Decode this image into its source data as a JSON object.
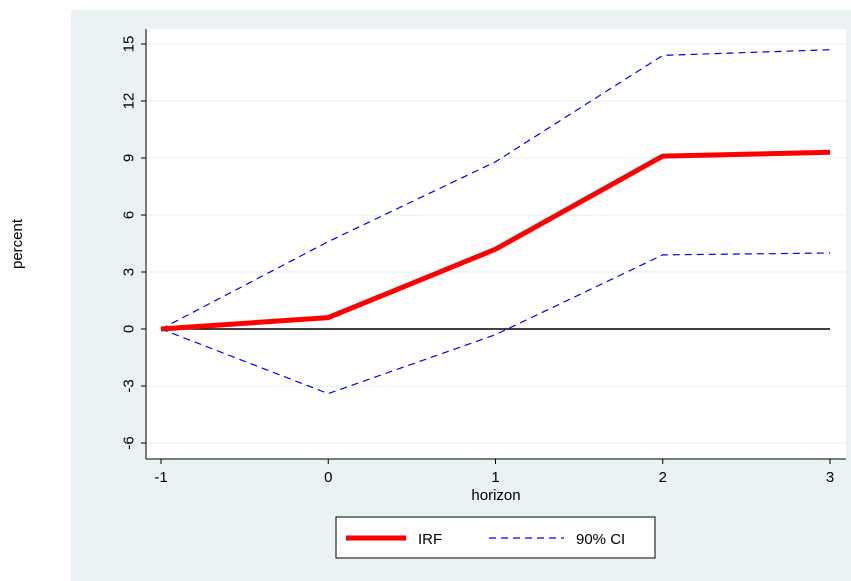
{
  "chart_data": {
    "type": "line",
    "title": "",
    "xlabel": "horizon",
    "ylabel": "percent",
    "xlim": [
      -1,
      3
    ],
    "ylim": [
      -6,
      15
    ],
    "x_ticks": [
      -1,
      0,
      1,
      2,
      3
    ],
    "y_ticks": [
      -6,
      -3,
      0,
      3,
      6,
      9,
      12,
      15
    ],
    "x": [
      -1,
      0,
      1,
      2,
      3
    ],
    "series": [
      {
        "name": "IRF",
        "style": "solid-thick",
        "color": "#ff0000",
        "values": [
          0,
          0.6,
          4.2,
          9.1,
          9.3
        ]
      },
      {
        "name": "90% CI",
        "style": "dashed",
        "color": "#0000ff",
        "values": [
          0,
          4.6,
          8.8,
          14.4,
          14.7
        ]
      },
      {
        "name": "",
        "style": "dashed",
        "color": "#0000ff",
        "values": [
          0,
          -3.4,
          -0.3,
          3.9,
          4.0
        ]
      }
    ],
    "zero_line": 0,
    "grid": "horizontal",
    "legend_position": "bottom",
    "legend_entries": [
      "IRF",
      "90% CI"
    ],
    "colors": {
      "outer_background": "#eaf2f3",
      "plot_background": "#ffffff",
      "gridline": "#eaf2f3"
    }
  }
}
